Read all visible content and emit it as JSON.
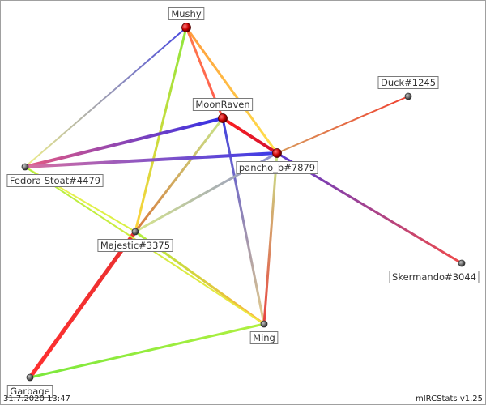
{
  "graph": {
    "nodes": [
      {
        "id": "mushy",
        "label": "Mushy",
        "major": true
      },
      {
        "id": "moonraven",
        "label": "MoonRaven",
        "major": true
      },
      {
        "id": "pancho",
        "label": "pancho_b#7879",
        "major": true
      },
      {
        "id": "duck",
        "label": "Duck#1245",
        "major": false
      },
      {
        "id": "fedora",
        "label": "Fedora Stoat#4479",
        "major": false
      },
      {
        "id": "majestic",
        "label": "Majestic#3375",
        "major": false
      },
      {
        "id": "skermando",
        "label": "Skermando#3044",
        "major": false
      },
      {
        "id": "ming",
        "label": "Ming",
        "major": false
      },
      {
        "id": "garbage",
        "label": "Garbage",
        "major": false
      }
    ],
    "edges": [
      {
        "from": "mushy",
        "to": "pancho",
        "c1": "#ff9a3c",
        "c2": "#ffe34d",
        "weight": 3
      },
      {
        "from": "mushy",
        "to": "moonraven",
        "c1": "#ff7a4a",
        "c2": "#ff5a50",
        "weight": 3
      },
      {
        "from": "mushy",
        "to": "fedora",
        "c1": "#4848e0",
        "c2": "#f0f08a",
        "weight": 2
      },
      {
        "from": "mushy",
        "to": "majestic",
        "c1": "#8ee63c",
        "c2": "#ffd23c",
        "weight": 3
      },
      {
        "from": "moonraven",
        "to": "pancho",
        "c1": "#ff2020",
        "c2": "#d01030",
        "weight": 4
      },
      {
        "from": "moonraven",
        "to": "fedora",
        "c1": "#3030e8",
        "c2": "#e85a80",
        "weight": 4
      },
      {
        "from": "moonraven",
        "to": "ming",
        "c1": "#4040e0",
        "c2": "#e8d08a",
        "weight": 3
      },
      {
        "from": "moonraven",
        "to": "majestic",
        "c1": "#c8e68a",
        "c2": "#d87a3c",
        "weight": 3
      },
      {
        "from": "pancho",
        "to": "fedora",
        "c1": "#3a3ae8",
        "c2": "#d870a0",
        "weight": 4
      },
      {
        "from": "pancho",
        "to": "duck",
        "c1": "#d89a5a",
        "c2": "#f04030",
        "weight": 2
      },
      {
        "from": "pancho",
        "to": "skermando",
        "c1": "#5a3ad0",
        "c2": "#f04a4a",
        "weight": 3
      },
      {
        "from": "pancho",
        "to": "ming",
        "c1": "#c8e88a",
        "c2": "#e84040",
        "weight": 3
      },
      {
        "from": "pancho",
        "to": "majestic",
        "c1": "#8a8ad0",
        "c2": "#d8e88a",
        "weight": 3
      },
      {
        "from": "fedora",
        "to": "majestic",
        "c1": "#f0f05a",
        "c2": "#d8f040",
        "weight": 2
      },
      {
        "from": "majestic",
        "to": "ming",
        "c1": "#b0f040",
        "c2": "#ffb03c",
        "weight": 3
      },
      {
        "from": "majestic",
        "to": "garbage",
        "c1": "#e83030",
        "c2": "#ff3030",
        "weight": 5
      },
      {
        "from": "garbage",
        "to": "ming",
        "c1": "#7ae83c",
        "c2": "#b0f040",
        "weight": 3
      },
      {
        "from": "fedora",
        "to": "ming",
        "c1": "#b0f040",
        "c2": "#f0e840",
        "weight": 2
      }
    ]
  },
  "footer": {
    "timestamp": "31.7.2020 13:47",
    "credit": "mIRCStats v1.25"
  }
}
